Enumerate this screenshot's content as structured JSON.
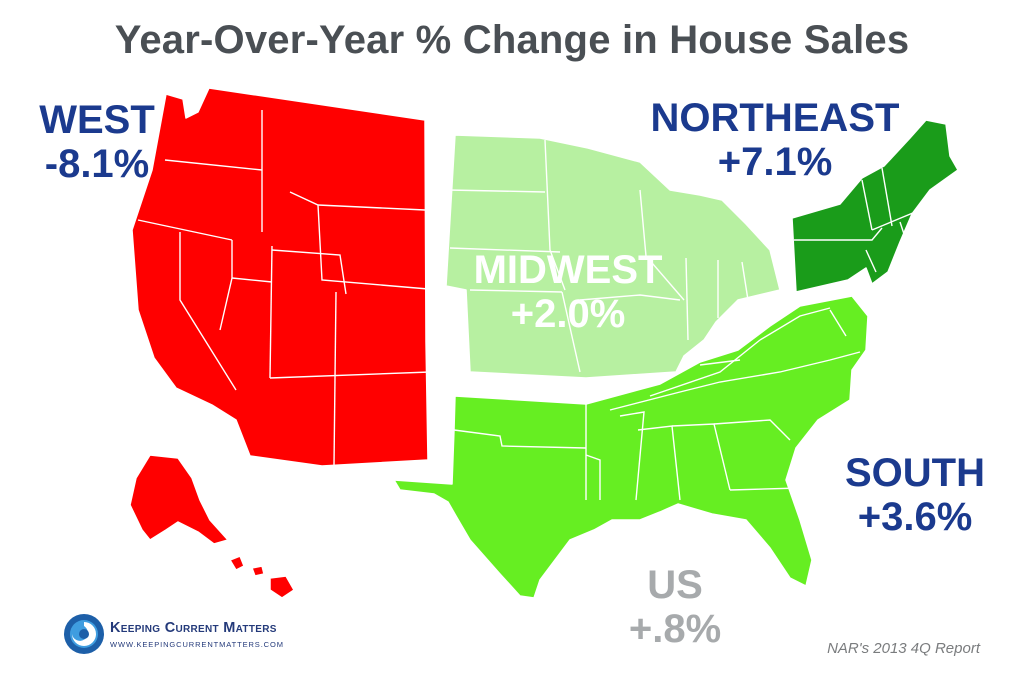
{
  "title": "Year-Over-Year % Change in House Sales",
  "regions": [
    {
      "id": "west",
      "name": "WEST",
      "value": "-8.1%",
      "color": "#ff0000"
    },
    {
      "id": "northeast",
      "name": "NORTHEAST",
      "value": "+7.1%",
      "color": "#1a9c1a"
    },
    {
      "id": "midwest",
      "name": "MIDWEST",
      "value": "+2.0%",
      "color": "#b7f0a1"
    },
    {
      "id": "south",
      "name": "SOUTH",
      "value": "+3.6%",
      "color": "#66ee22"
    }
  ],
  "us": {
    "name": "US",
    "value": "+.8%"
  },
  "logo": {
    "name": "Keeping Current Matters",
    "url": "WWW.KEEPINGCURRENTMATTERS.COM"
  },
  "source": "NAR's 2013 4Q Report",
  "colors": {
    "title": "#4a4f54",
    "label": "#1b3a8e",
    "us_label": "#a7aaac"
  }
}
